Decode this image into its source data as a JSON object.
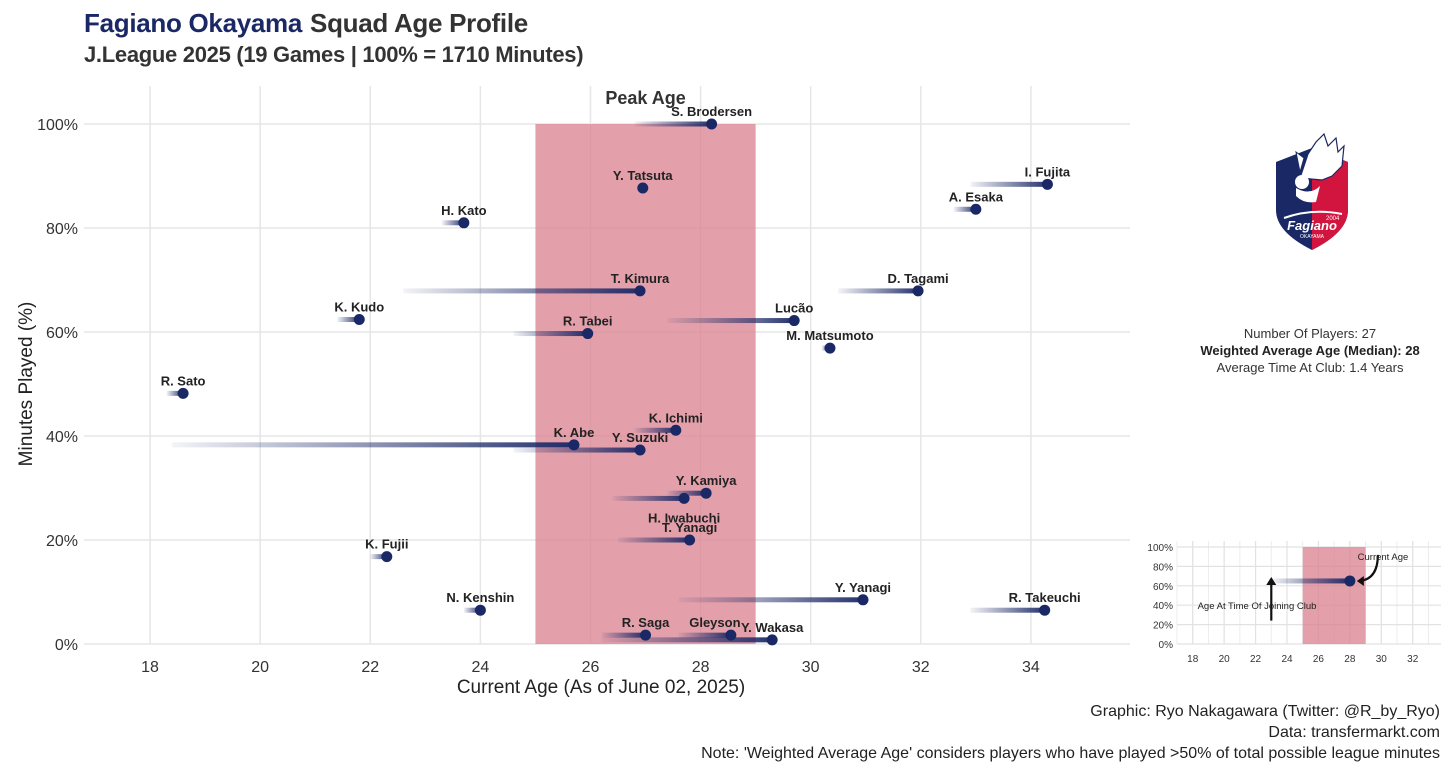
{
  "header": {
    "club": "Fagiano Okayama",
    "title_rest": "Squad Age Profile",
    "subtitle": "J.League 2025 (19 Games | 100% = 1710 Minutes)"
  },
  "stats": {
    "players": "Number Of Players: 27",
    "weighted_age": "Weighted Average Age (Median): 28",
    "time_at_club": "Average Time At Club: 1.4 Years"
  },
  "credits": {
    "graphic": "Graphic: Ryo Nakagawara (Twitter: @R_by_Ryo)",
    "data": "Data: transfermarkt.com",
    "note": "Note: 'Weighted Average Age' considers players who have played >50% of total possible league minutes"
  },
  "crest": {
    "year": "2004",
    "wordmark": "Fagiano",
    "city": "OKAYAMA"
  },
  "colors": {
    "navy": "#1a2866",
    "peak": "#d9808f",
    "grid": "#e6e6e6",
    "crest_red": "#d2153f"
  },
  "chart_data": [
    {
      "type": "scatter",
      "xlabel": "Current Age (As of June 02, 2025)",
      "ylabel": "Minutes Played (%)",
      "xlim": [
        16.8,
        35.8
      ],
      "ylim": [
        0,
        100
      ],
      "xticks": [
        18,
        20,
        22,
        24,
        26,
        28,
        30,
        32,
        34
      ],
      "yticks": [
        0,
        20,
        40,
        60,
        80,
        100
      ],
      "ytick_labels": [
        "0%",
        "20%",
        "40%",
        "60%",
        "80%",
        "100%"
      ],
      "grid": true,
      "peak_band": {
        "x": [
          25,
          29
        ],
        "label": "Peak Age"
      },
      "points": [
        {
          "name": "S. Brodersen",
          "age": 28.2,
          "joined": 26.8,
          "minutes": 100
        },
        {
          "name": "Y. Tatsuta",
          "age": 26.95,
          "joined": 26.9,
          "minutes": 87.7
        },
        {
          "name": "I. Fujita",
          "age": 34.3,
          "joined": 32.9,
          "minutes": 88.4
        },
        {
          "name": "A. Esaka",
          "age": 33.0,
          "joined": 32.6,
          "minutes": 83.6
        },
        {
          "name": "H. Kato",
          "age": 23.7,
          "joined": 23.3,
          "minutes": 81.0
        },
        {
          "name": "T. Kimura",
          "age": 26.9,
          "joined": 22.6,
          "minutes": 67.9
        },
        {
          "name": "D. Tagami",
          "age": 31.95,
          "joined": 30.5,
          "minutes": 67.9
        },
        {
          "name": "K. Kudo",
          "age": 21.8,
          "joined": 21.4,
          "minutes": 62.4
        },
        {
          "name": "Lucão",
          "age": 29.7,
          "joined": 27.4,
          "minutes": 62.2
        },
        {
          "name": "R. Tabei",
          "age": 25.95,
          "joined": 24.6,
          "minutes": 59.7
        },
        {
          "name": "M. Matsumoto",
          "age": 30.35,
          "joined": 30.2,
          "minutes": 56.9
        },
        {
          "name": "R. Sato",
          "age": 18.6,
          "joined": 18.3,
          "minutes": 48.2
        },
        {
          "name": "K. Ichimi",
          "age": 27.55,
          "joined": 26.8,
          "minutes": 41.1
        },
        {
          "name": "K. Abe",
          "age": 25.7,
          "joined": 18.4,
          "minutes": 38.3
        },
        {
          "name": "Y. Suzuki",
          "age": 26.9,
          "joined": 24.6,
          "minutes": 37.3
        },
        {
          "name": "Y. Kamiya",
          "age": 28.1,
          "joined": 27.4,
          "minutes": 29.0
        },
        {
          "name": "H. Iwabuchi",
          "age": 27.7,
          "joined": 26.4,
          "minutes": 28.0
        },
        {
          "name": "T. Yanagi",
          "age": 27.8,
          "joined": 26.5,
          "minutes": 20.0
        },
        {
          "name": "K. Fujii",
          "age": 22.3,
          "joined": 22.0,
          "minutes": 16.8
        },
        {
          "name": "Y. Yanagi",
          "age": 30.95,
          "joined": 27.6,
          "minutes": 8.5
        },
        {
          "name": "N. Kenshin",
          "age": 24.0,
          "joined": 23.7,
          "minutes": 6.5
        },
        {
          "name": "R. Takeuchi",
          "age": 34.25,
          "joined": 32.9,
          "minutes": 6.5
        },
        {
          "name": "R. Saga",
          "age": 27.0,
          "joined": 26.2,
          "minutes": 1.7
        },
        {
          "name": "Gleyson",
          "age": 28.55,
          "joined": 27.6,
          "minutes": 1.7
        },
        {
          "name": "Y. Wakasa",
          "age": 29.3,
          "joined": 26.2,
          "minutes": 0.8
        }
      ]
    },
    {
      "type": "scatter",
      "title": "",
      "xlim": [
        17,
        33.8
      ],
      "ylim": [
        0,
        100
      ],
      "xticks": [
        18,
        20,
        22,
        24,
        26,
        28,
        30,
        32
      ],
      "yticks": [
        0,
        20,
        40,
        60,
        80,
        100
      ],
      "ytick_labels": [
        "0%",
        "20%",
        "40%",
        "60%",
        "80%",
        "100%"
      ],
      "peak_band": {
        "x": [
          25,
          29
        ]
      },
      "example": {
        "joined": 23,
        "age": 28,
        "minutes": 65
      },
      "annotations": {
        "current": "Current Age",
        "joining": "Age At Time Of Joining Club"
      }
    }
  ]
}
